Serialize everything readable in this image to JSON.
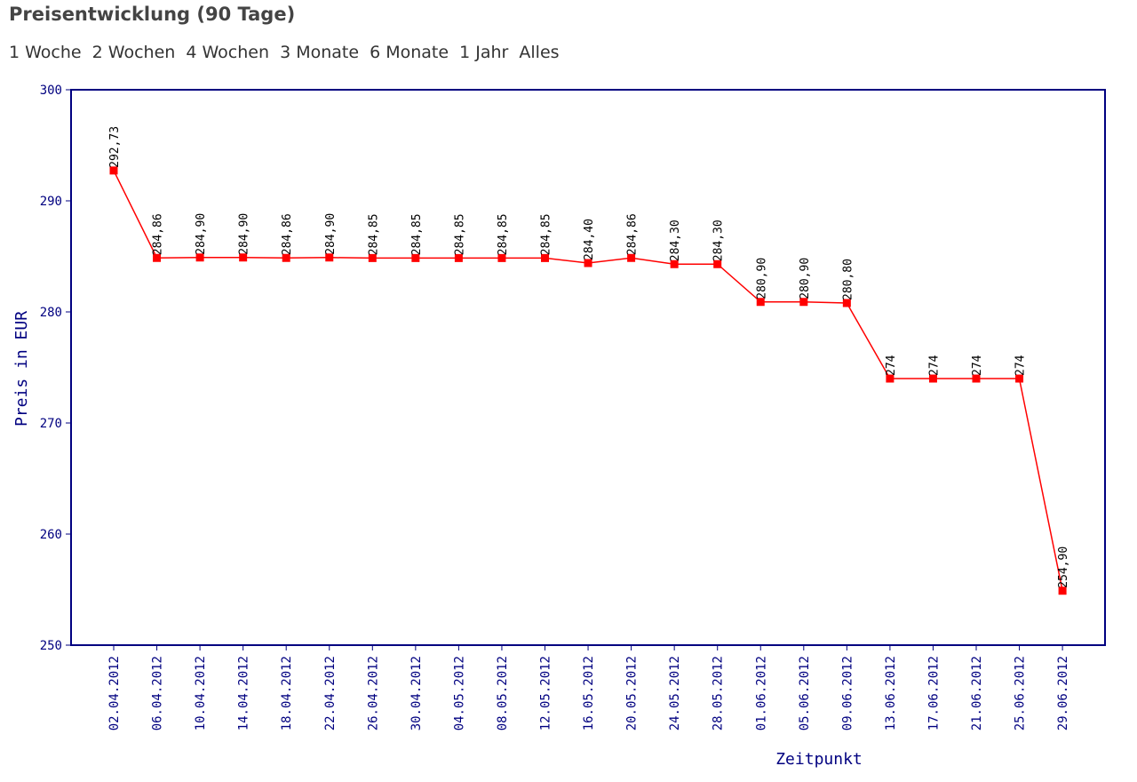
{
  "header": {
    "title": "Preisentwicklung (90 Tage)",
    "ranges": [
      "1 Woche",
      "2 Wochen",
      "4 Wochen",
      "3 Monate",
      "6 Monate",
      "1 Jahr",
      "Alles"
    ]
  },
  "chart_data": {
    "type": "line",
    "xlabel": "Zeitpunkt",
    "ylabel": "Preis in EUR",
    "ylim": [
      250,
      300
    ],
    "yticks": [
      250,
      260,
      270,
      280,
      290,
      300
    ],
    "grid": false,
    "colors": {
      "series": "#ff0000",
      "axes": "#000080",
      "frame": "#000080"
    },
    "categories": [
      "02.04.2012",
      "06.04.2012",
      "10.04.2012",
      "14.04.2012",
      "18.04.2012",
      "22.04.2012",
      "26.04.2012",
      "30.04.2012",
      "04.05.2012",
      "08.05.2012",
      "12.05.2012",
      "16.05.2012",
      "20.05.2012",
      "24.05.2012",
      "28.05.2012",
      "01.06.2012",
      "05.06.2012",
      "09.06.2012",
      "13.06.2012",
      "17.06.2012",
      "21.06.2012",
      "25.06.2012",
      "29.06.2012"
    ],
    "values": [
      292.73,
      284.86,
      284.9,
      284.9,
      284.86,
      284.9,
      284.85,
      284.85,
      284.85,
      284.85,
      284.85,
      284.4,
      284.86,
      284.3,
      284.3,
      280.9,
      280.9,
      280.8,
      274,
      274,
      274,
      274,
      254.9
    ],
    "labels": [
      "292,73",
      "284,86",
      "284,90",
      "284,90",
      "284,86",
      "284,90",
      "284,85",
      "284,85",
      "284,85",
      "284,85",
      "284,85",
      "284,40",
      "284,86",
      "284,30",
      "284,30",
      "280,90",
      "280,90",
      "280,80",
      "274",
      "274",
      "274",
      "274",
      "254,90"
    ]
  }
}
